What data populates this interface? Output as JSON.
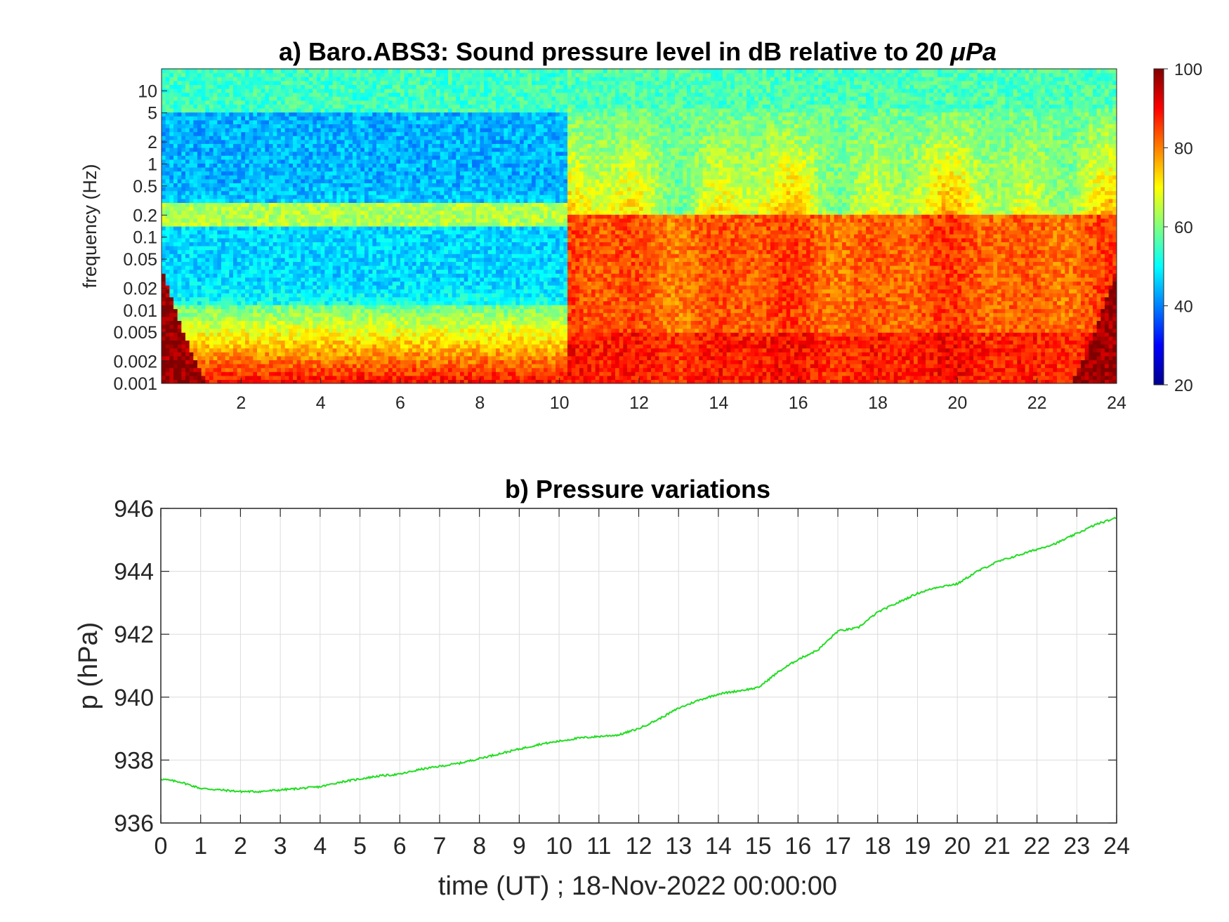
{
  "chart_data": [
    {
      "type": "heatmap",
      "title_text": "a) Baro.ABS3: Sound pressure level in dB relative to 20 ",
      "title_unit": "μPa",
      "xlabel": "",
      "ylabel": "frequency (Hz)",
      "xlim": [
        0,
        24
      ],
      "xticks": [
        "2",
        "4",
        "6",
        "8",
        "10",
        "12",
        "14",
        "16",
        "18",
        "20",
        "22",
        "24"
      ],
      "ylim_hz": [
        0.001,
        20
      ],
      "y_scale": "log",
      "yticks": [
        "10",
        "5",
        "2",
        "1",
        "0.5",
        "0.2",
        "0.1",
        "0.05",
        "0.02",
        "0.01",
        "0.005",
        "0.002",
        "0.001"
      ],
      "colorbar": {
        "min": 20,
        "max": 100,
        "ticks": [
          "100",
          "80",
          "60",
          "40",
          "20"
        ],
        "colormap": "jet"
      },
      "regions": [
        {
          "time_range": [
            0,
            10.2
          ],
          "description_levels": {
            "above_5Hz_dB": 55,
            "0.2_to_5Hz_dB": 45,
            "0.15_to_0.3Hz_dB": 65,
            "0.01_to_0.1Hz_dB": 48,
            "below_0.005Hz_dB": 85
          }
        },
        {
          "time_range": [
            10.2,
            24
          ],
          "description_levels": {
            "above_5Hz_dB": 55,
            "0.2_to_5Hz_dB": 72,
            "0.01_to_0.2Hz_dB": 83,
            "below_0.005Hz_dB": 88
          }
        }
      ]
    },
    {
      "type": "line",
      "title": "b) Pressure variations",
      "xlabel": "time (UT) ; 18-Nov-2022 00:00:00",
      "ylabel": "p (hPa)",
      "xlim": [
        0,
        24
      ],
      "ylim": [
        936,
        946
      ],
      "xticks": [
        "0",
        "1",
        "2",
        "3",
        "4",
        "5",
        "6",
        "7",
        "8",
        "9",
        "10",
        "11",
        "12",
        "13",
        "14",
        "15",
        "16",
        "17",
        "18",
        "19",
        "20",
        "21",
        "22",
        "23",
        "24"
      ],
      "yticks": [
        "946",
        "944",
        "942",
        "940",
        "938",
        "936"
      ],
      "grid": true,
      "line_color": "#22dd22",
      "x": [
        0,
        0.5,
        1,
        1.5,
        2,
        2.5,
        3,
        3.5,
        4,
        4.5,
        5,
        5.5,
        6,
        6.5,
        7,
        7.5,
        8,
        8.5,
        9,
        9.5,
        10,
        10.5,
        11,
        11.5,
        12,
        12.5,
        13,
        13.5,
        14,
        14.5,
        15,
        15.5,
        16,
        16.5,
        17,
        17.5,
        18,
        18.5,
        19,
        19.5,
        20,
        20.5,
        21,
        21.5,
        22,
        22.5,
        23,
        23.5,
        24
      ],
      "y": [
        937.4,
        937.3,
        937.1,
        937.05,
        937.0,
        937.0,
        937.05,
        937.1,
        937.15,
        937.3,
        937.4,
        937.5,
        937.55,
        937.7,
        937.8,
        937.9,
        938.05,
        938.2,
        938.35,
        938.5,
        938.6,
        938.7,
        938.75,
        938.8,
        939.0,
        939.3,
        939.65,
        939.9,
        940.1,
        940.2,
        940.3,
        940.8,
        941.2,
        941.5,
        942.1,
        942.2,
        942.7,
        943.0,
        943.3,
        943.5,
        943.6,
        944.0,
        944.3,
        944.5,
        944.7,
        944.9,
        945.2,
        945.5,
        945.7
      ]
    }
  ]
}
